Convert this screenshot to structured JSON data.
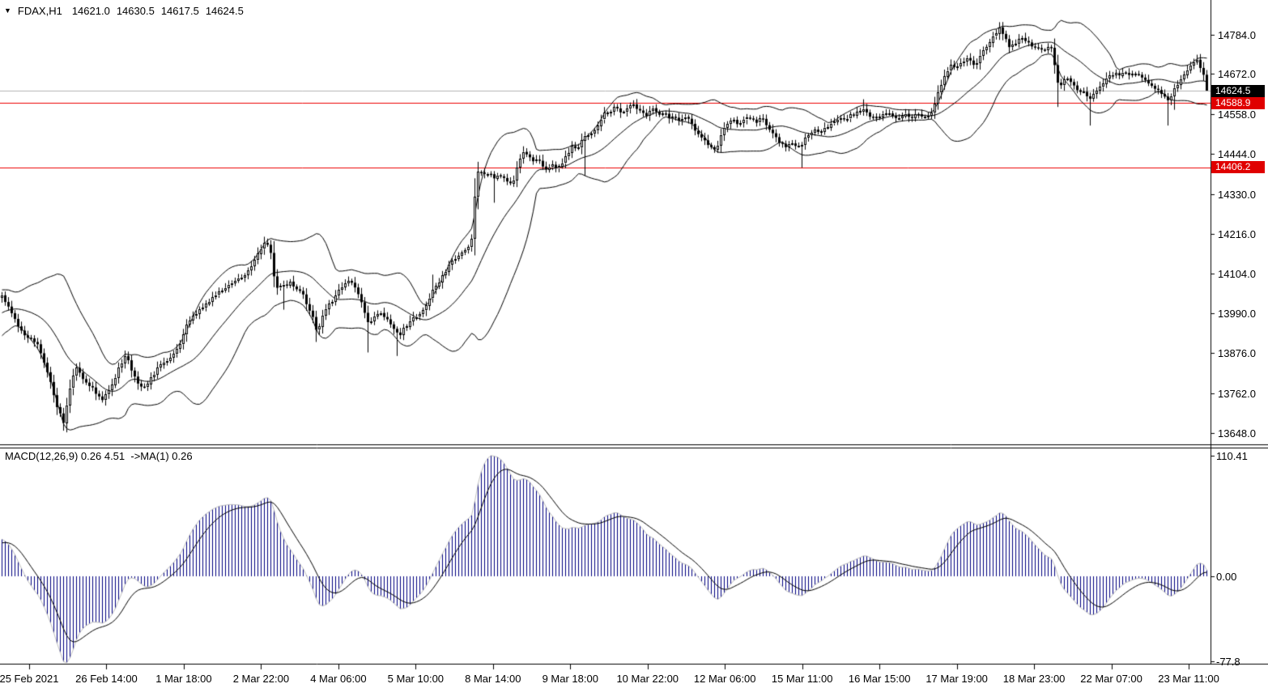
{
  "quote_bar": {
    "marker": "▼",
    "symbol_period": "FDAX,H1",
    "open": "14621.0",
    "high": "14630.5",
    "low": "14617.5",
    "close": "14624.5"
  },
  "indicator_label": "MACD(12,26,9) 0.26 4.51  ->MA(1) 0.26",
  "price_axis": {
    "labels": [
      "14784.0",
      "14672.0",
      "14558.0",
      "14444.0",
      "14330.0",
      "14216.0",
      "14104.0",
      "13990.0",
      "13876.0",
      "13762.0",
      "13648.0"
    ],
    "badges": [
      {
        "text": "14624.5",
        "value": 14624.5,
        "type": "current-price"
      },
      {
        "text": "14588.9",
        "value": 14588.9,
        "type": "red-level"
      },
      {
        "text": "14406.2",
        "value": 14406.2,
        "type": "red-level"
      }
    ]
  },
  "macd_axis": {
    "labels": [
      {
        "text": "110.41",
        "value": 110.41
      },
      {
        "text": "0.00",
        "value": 0
      },
      {
        "text": "-77.8",
        "value": -77.8
      }
    ]
  },
  "time_axis": {
    "labels": [
      "25 Feb 2021",
      "26 Feb 14:00",
      "1 Mar 18:00",
      "2 Mar 22:00",
      "4 Mar 06:00",
      "5 Mar 10:00",
      "8 Mar 14:00",
      "9 Mar 18:00",
      "10 Mar 22:00",
      "12 Mar 06:00",
      "15 Mar 11:00",
      "16 Mar 15:00",
      "17 Mar 19:00",
      "18 Mar 23:00",
      "22 Mar 07:00",
      "23 Mar 11:00"
    ]
  },
  "colors": {
    "background": "#ffffff",
    "foreground": "#000000",
    "bar_up_fill": "#ffffff",
    "bar_down_fill": "#000000",
    "bollinger": "#000000",
    "macd_histogram": "#000080",
    "macd_envelope": "#c0c0c0",
    "macd_signal": "#000000",
    "level_red": "#ee0000",
    "current_price_line": "#b3b3b3",
    "badge_black_bg": "#000000",
    "badge_red_bg": "#e00000",
    "badge_text": "#ffffff"
  },
  "chart_data": [
    {
      "type": "candlestick",
      "title": "FDAX,H1",
      "ohlc_quote": {
        "open": 14621.0,
        "high": 14630.5,
        "low": 14617.5,
        "close": 14624.5
      },
      "ylim": [
        13616,
        14883
      ],
      "y_ticks": [
        14784,
        14672,
        14558,
        14444,
        14330,
        14216,
        14104,
        13990,
        13876,
        13762,
        13648
      ],
      "x_ticks": [
        "25 Feb 2021",
        "26 Feb 14:00",
        "1 Mar 18:00",
        "2 Mar 22:00",
        "4 Mar 06:00",
        "5 Mar 10:00",
        "8 Mar 14:00",
        "9 Mar 18:00",
        "10 Mar 22:00",
        "12 Mar 06:00",
        "15 Mar 11:00",
        "16 Mar 15:00",
        "17 Mar 19:00",
        "18 Mar 23:00",
        "22 Mar 07:00",
        "23 Mar 11:00"
      ],
      "bar_spacing_px": 4,
      "levels": [
        {
          "price": 14624.5,
          "style": "current-price-silver"
        },
        {
          "price": 14588.9,
          "style": "red-line"
        },
        {
          "price": 14406.2,
          "style": "red-line"
        }
      ],
      "indicators": [
        {
          "name": "Bollinger Bands",
          "period": 20,
          "deviations": 2
        }
      ],
      "close_path": [
        [
          2,
          14040
        ],
        [
          8,
          14015
        ],
        [
          15,
          13985
        ],
        [
          22,
          13950
        ],
        [
          30,
          13930
        ],
        [
          38,
          13915
        ],
        [
          45,
          13905
        ],
        [
          52,
          13860
        ],
        [
          58,
          13820
        ],
        [
          64,
          13775
        ],
        [
          70,
          13720
        ],
        [
          76,
          13690
        ],
        [
          79,
          13672
        ],
        [
          83,
          13740
        ],
        [
          88,
          13800
        ],
        [
          93,
          13840
        ],
        [
          97,
          13830
        ],
        [
          100,
          13800
        ],
        [
          104,
          13795
        ],
        [
          110,
          13785
        ],
        [
          118,
          13762
        ],
        [
          126,
          13745
        ],
        [
          133,
          13768
        ],
        [
          140,
          13800
        ],
        [
          148,
          13842
        ],
        [
          156,
          13870
        ],
        [
          162,
          13830
        ],
        [
          168,
          13800
        ],
        [
          175,
          13772
        ],
        [
          182,
          13792
        ],
        [
          190,
          13820
        ],
        [
          198,
          13842
        ],
        [
          205,
          13856
        ],
        [
          212,
          13862
        ],
        [
          222,
          13902
        ],
        [
          230,
          13962
        ],
        [
          245,
          14000
        ],
        [
          258,
          14022
        ],
        [
          270,
          14050
        ],
        [
          282,
          14072
        ],
        [
          295,
          14088
        ],
        [
          308,
          14112
        ],
        [
          318,
          14160
        ],
        [
          327,
          14192
        ],
        [
          333,
          14178
        ],
        [
          338,
          14092
        ],
        [
          343,
          14060
        ],
        [
          350,
          14072
        ],
        [
          358,
          14076
        ],
        [
          365,
          14060
        ],
        [
          372,
          14050
        ],
        [
          378,
          14020
        ],
        [
          385,
          13982
        ],
        [
          391,
          13938
        ],
        [
          398,
          13982
        ],
        [
          405,
          14012
        ],
        [
          412,
          14032
        ],
        [
          420,
          14062
        ],
        [
          430,
          14082
        ],
        [
          438,
          14068
        ],
        [
          444,
          14030
        ],
        [
          450,
          13990
        ],
        [
          455,
          13952
        ],
        [
          462,
          13978
        ],
        [
          470,
          13992
        ],
        [
          478,
          13975
        ],
        [
          485,
          13950
        ],
        [
          492,
          13922
        ],
        [
          500,
          13952
        ],
        [
          510,
          13975
        ],
        [
          518,
          13992
        ],
        [
          526,
          14012
        ],
        [
          534,
          14058
        ],
        [
          542,
          14082
        ],
        [
          550,
          14112
        ],
        [
          558,
          14140
        ],
        [
          566,
          14156
        ],
        [
          572,
          14166
        ],
        [
          578,
          14182
        ],
        [
          583,
          14212
        ],
        [
          588,
          14400
        ],
        [
          593,
          14392
        ],
        [
          598,
          14385
        ],
        [
          604,
          14395
        ],
        [
          610,
          14372
        ],
        [
          616,
          14382
        ],
        [
          622,
          14375
        ],
        [
          628,
          14362
        ],
        [
          634,
          14366
        ],
        [
          640,
          14428
        ],
        [
          646,
          14450
        ],
        [
          652,
          14440
        ],
        [
          658,
          14422
        ],
        [
          664,
          14436
        ],
        [
          670,
          14412
        ],
        [
          676,
          14400
        ],
        [
          682,
          14412
        ],
        [
          688,
          14405
        ],
        [
          694,
          14416
        ],
        [
          700,
          14440
        ],
        [
          706,
          14465
        ],
        [
          712,
          14455
        ],
        [
          718,
          14488
        ],
        [
          724,
          14495
        ],
        [
          730,
          14506
        ],
        [
          736,
          14520
        ],
        [
          742,
          14546
        ],
        [
          748,
          14562
        ],
        [
          754,
          14570
        ],
        [
          760,
          14576
        ],
        [
          766,
          14560
        ],
        [
          772,
          14570
        ],
        [
          778,
          14586
        ],
        [
          784,
          14580
        ],
        [
          790,
          14570
        ],
        [
          796,
          14550
        ],
        [
          802,
          14566
        ],
        [
          808,
          14572
        ],
        [
          814,
          14556
        ],
        [
          820,
          14562
        ],
        [
          826,
          14546
        ],
        [
          832,
          14556
        ],
        [
          838,
          14536
        ],
        [
          844,
          14550
        ],
        [
          850,
          14540
        ],
        [
          856,
          14520
        ],
        [
          862,
          14500
        ],
        [
          868,
          14486
        ],
        [
          874,
          14470
        ],
        [
          880,
          14455
        ],
        [
          886,
          14466
        ],
        [
          892,
          14515
        ],
        [
          898,
          14530
        ],
        [
          904,
          14542
        ],
        [
          910,
          14530
        ],
        [
          916,
          14540
        ],
        [
          922,
          14546
        ],
        [
          928,
          14540
        ],
        [
          934,
          14532
        ],
        [
          940,
          14546
        ],
        [
          946,
          14530
        ],
        [
          952,
          14510
        ],
        [
          958,
          14490
        ],
        [
          964,
          14476
        ],
        [
          970,
          14466
        ],
        [
          976,
          14480
        ],
        [
          982,
          14470
        ],
        [
          988,
          14466
        ],
        [
          994,
          14490
        ],
        [
          1000,
          14506
        ],
        [
          1006,
          14512
        ],
        [
          1012,
          14500
        ],
        [
          1018,
          14516
        ],
        [
          1024,
          14526
        ],
        [
          1030,
          14536
        ],
        [
          1036,
          14546
        ],
        [
          1042,
          14540
        ],
        [
          1048,
          14550
        ],
        [
          1054,
          14556
        ],
        [
          1060,
          14562
        ],
        [
          1066,
          14572
        ],
        [
          1072,
          14556
        ],
        [
          1078,
          14546
        ],
        [
          1084,
          14552
        ],
        [
          1090,
          14556
        ],
        [
          1096,
          14562
        ],
        [
          1102,
          14550
        ],
        [
          1108,
          14546
        ],
        [
          1114,
          14552
        ],
        [
          1120,
          14556
        ],
        [
          1126,
          14550
        ],
        [
          1132,
          14556
        ],
        [
          1138,
          14548
        ],
        [
          1144,
          14554
        ],
        [
          1150,
          14566
        ],
        [
          1156,
          14600
        ],
        [
          1162,
          14645
        ],
        [
          1168,
          14672
        ],
        [
          1174,
          14695
        ],
        [
          1180,
          14686
        ],
        [
          1186,
          14706
        ],
        [
          1192,
          14716
        ],
        [
          1198,
          14706
        ],
        [
          1204,
          14696
        ],
        [
          1210,
          14726
        ],
        [
          1216,
          14746
        ],
        [
          1222,
          14766
        ],
        [
          1228,
          14786
        ],
        [
          1234,
          14802
        ],
        [
          1240,
          14780
        ],
        [
          1246,
          14752
        ],
        [
          1252,
          14756
        ],
        [
          1258,
          14770
        ],
        [
          1264,
          14775
        ],
        [
          1270,
          14762
        ],
        [
          1276,
          14752
        ],
        [
          1282,
          14746
        ],
        [
          1288,
          14740
        ],
        [
          1294,
          14748
        ],
        [
          1300,
          14744
        ],
        [
          1304,
          14652
        ],
        [
          1310,
          14636
        ],
        [
          1316,
          14660
        ],
        [
          1322,
          14646
        ],
        [
          1328,
          14632
        ],
        [
          1334,
          14625
        ],
        [
          1340,
          14616
        ],
        [
          1346,
          14602
        ],
        [
          1352,
          14616
        ],
        [
          1358,
          14636
        ],
        [
          1364,
          14652
        ],
        [
          1370,
          14666
        ],
        [
          1376,
          14676
        ],
        [
          1382,
          14670
        ],
        [
          1388,
          14680
        ],
        [
          1394,
          14672
        ],
        [
          1400,
          14678
        ],
        [
          1406,
          14668
        ],
        [
          1412,
          14660
        ],
        [
          1418,
          14648
        ],
        [
          1424,
          14636
        ],
        [
          1430,
          14625
        ],
        [
          1436,
          14615
        ],
        [
          1442,
          14600
        ],
        [
          1448,
          14620
        ],
        [
          1454,
          14645
        ],
        [
          1460,
          14662
        ],
        [
          1466,
          14686
        ],
        [
          1472,
          14705
        ],
        [
          1478,
          14710
        ],
        [
          1484,
          14680
        ],
        [
          1489,
          14645
        ],
        [
          1493,
          14624.5
        ]
      ],
      "spike_wicks": [
        [
          79,
          13655
        ],
        [
          327,
          14208
        ],
        [
          350,
          14000
        ],
        [
          391,
          13908
        ],
        [
          455,
          13878
        ],
        [
          488,
          13868
        ],
        [
          534,
          14100
        ],
        [
          610,
          14305
        ],
        [
          646,
          14466
        ],
        [
          720,
          14382
        ],
        [
          988,
          14405
        ],
        [
          1066,
          14600
        ],
        [
          1234,
          14816
        ],
        [
          1304,
          14578
        ],
        [
          1346,
          14525
        ],
        [
          1442,
          14525
        ],
        [
          1448,
          14570
        ]
      ]
    },
    {
      "type": "macd",
      "params": {
        "fast_ema": 12,
        "slow_ema": 26,
        "signal": 9
      },
      "current_values": {
        "macd": 0.26,
        "osma": 4.51,
        "ma": 0.26
      },
      "ylim": [
        -80,
        117
      ],
      "y_ticks": [
        110.41,
        0,
        -77.8
      ]
    }
  ]
}
